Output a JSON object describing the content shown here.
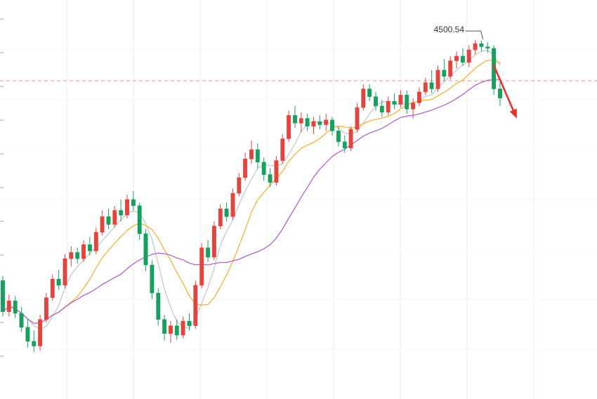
{
  "chart_data": {
    "type": "candlestick",
    "title": "",
    "xlabel": "",
    "ylabel": "",
    "grid": true,
    "legend_position": "none",
    "ylim": [
      4040,
      4552
    ],
    "candle_count": 81,
    "candles": [
      [
        4192,
        4198,
        4146,
        4152
      ],
      [
        4152,
        4174,
        4146,
        4166
      ],
      [
        4166,
        4172,
        4144,
        4150
      ],
      [
        4150,
        4158,
        4126,
        4132
      ],
      [
        4132,
        4142,
        4106,
        4114
      ],
      [
        4114,
        4128,
        4100,
        4108
      ],
      [
        4108,
        4148,
        4102,
        4142
      ],
      [
        4142,
        4176,
        4138,
        4170
      ],
      [
        4170,
        4200,
        4166,
        4194
      ],
      [
        4194,
        4206,
        4180,
        4186
      ],
      [
        4186,
        4226,
        4182,
        4220
      ],
      [
        4220,
        4236,
        4210,
        4228
      ],
      [
        4228,
        4234,
        4214,
        4220
      ],
      [
        4220,
        4244,
        4216,
        4238
      ],
      [
        4238,
        4248,
        4224,
        4230
      ],
      [
        4230,
        4260,
        4226,
        4254
      ],
      [
        4254,
        4282,
        4250,
        4274
      ],
      [
        4274,
        4284,
        4258,
        4264
      ],
      [
        4264,
        4288,
        4260,
        4282
      ],
      [
        4282,
        4296,
        4268,
        4276
      ],
      [
        4276,
        4302,
        4272,
        4296
      ],
      [
        4296,
        4307,
        4282,
        4288
      ],
      [
        4288,
        4292,
        4244,
        4252
      ],
      [
        4252,
        4258,
        4204,
        4212
      ],
      [
        4212,
        4218,
        4168,
        4176
      ],
      [
        4176,
        4182,
        4134,
        4142
      ],
      [
        4142,
        4148,
        4115,
        4124
      ],
      [
        4124,
        4140,
        4112,
        4134
      ],
      [
        4134,
        4142,
        4116,
        4122
      ],
      [
        4122,
        4146,
        4118,
        4140
      ],
      [
        4140,
        4150,
        4128,
        4134
      ],
      [
        4134,
        4192,
        4130,
        4186
      ],
      [
        4186,
        4240,
        4182,
        4234
      ],
      [
        4234,
        4244,
        4216,
        4222
      ],
      [
        4222,
        4268,
        4218,
        4262
      ],
      [
        4262,
        4290,
        4258,
        4284
      ],
      [
        4284,
        4292,
        4268,
        4274
      ],
      [
        4274,
        4310,
        4270,
        4304
      ],
      [
        4304,
        4330,
        4300,
        4324
      ],
      [
        4324,
        4356,
        4320,
        4348
      ],
      [
        4348,
        4372,
        4342,
        4360
      ],
      [
        4360,
        4368,
        4336,
        4344
      ],
      [
        4344,
        4350,
        4320,
        4328
      ],
      [
        4328,
        4336,
        4312,
        4318
      ],
      [
        4318,
        4352,
        4314,
        4346
      ],
      [
        4346,
        4380,
        4342,
        4374
      ],
      [
        4374,
        4410,
        4370,
        4404
      ],
      [
        4404,
        4416,
        4388,
        4394
      ],
      [
        4394,
        4408,
        4382,
        4400
      ],
      [
        4400,
        4406,
        4384,
        4390
      ],
      [
        4390,
        4402,
        4380,
        4396
      ],
      [
        4396,
        4404,
        4386,
        4392
      ],
      [
        4392,
        4406,
        4384,
        4398
      ],
      [
        4398,
        4402,
        4378,
        4384
      ],
      [
        4384,
        4390,
        4364,
        4370
      ],
      [
        4370,
        4378,
        4356,
        4362
      ],
      [
        4362,
        4390,
        4358,
        4386
      ],
      [
        4386,
        4420,
        4382,
        4414
      ],
      [
        4414,
        4444,
        4410,
        4438
      ],
      [
        4438,
        4444,
        4422,
        4428
      ],
      [
        4428,
        4434,
        4410,
        4416
      ],
      [
        4416,
        4424,
        4402,
        4408
      ],
      [
        4408,
        4428,
        4404,
        4422
      ],
      [
        4422,
        4432,
        4412,
        4418
      ],
      [
        4418,
        4436,
        4414,
        4430
      ],
      [
        4430,
        4436,
        4406,
        4412
      ],
      [
        4412,
        4426,
        4400,
        4420
      ],
      [
        4420,
        4440,
        4416,
        4434
      ],
      [
        4434,
        4452,
        4430,
        4446
      ],
      [
        4446,
        4462,
        4432,
        4438
      ],
      [
        4438,
        4468,
        4434,
        4462
      ],
      [
        4462,
        4476,
        4448,
        4454
      ],
      [
        4454,
        4480,
        4450,
        4474
      ],
      [
        4474,
        4486,
        4464,
        4480
      ],
      [
        4480,
        4490,
        4468,
        4472
      ],
      [
        4472,
        4494,
        4466,
        4488
      ],
      [
        4488,
        4500.54,
        4482,
        4496
      ],
      [
        4496,
        4500,
        4486,
        4492
      ],
      [
        4492,
        4498,
        4484,
        4490
      ],
      [
        4490,
        4494,
        4430,
        4438
      ],
      [
        4438,
        4448,
        4416,
        4426
      ]
    ],
    "ma_lines": [
      {
        "name": "MA5",
        "period": 5,
        "color": "#c7c9cc"
      },
      {
        "name": "MA10",
        "period": 10,
        "color": "#f2b43e"
      },
      {
        "name": "MA20",
        "period": 20,
        "color": "#b065c8"
      }
    ],
    "current_price_line": {
      "price": 4448.3,
      "style": "dashed",
      "color": "#ef8b8b"
    },
    "peak_label": {
      "text": "4500.54",
      "candle_index": 76,
      "price": 4500.54
    },
    "annotations": {
      "down_arrow": {
        "from_index": 79.0,
        "from_price": 4468,
        "to_index": 82.7,
        "to_price": 4400,
        "color": "#e8342b"
      }
    },
    "colors": {
      "up": "#e2453d",
      "down": "#17a05f",
      "grid_v": "#efefef",
      "grid_h": "#f7f7f7",
      "axis_tick": "#a0a4aa",
      "background": "#ffffff",
      "annotation_text": "#333333",
      "annotation_line": "#555555"
    }
  }
}
